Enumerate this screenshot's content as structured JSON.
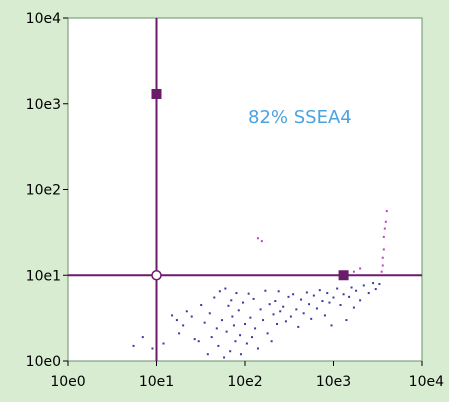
{
  "chart_data": {
    "type": "scatter",
    "x_scale": "log",
    "y_scale": "log",
    "xlim": [
      1,
      10000
    ],
    "ylim": [
      1,
      10000
    ],
    "x_ticks": [
      {
        "value": 1,
        "label": "10e0"
      },
      {
        "value": 10,
        "label": "10e1"
      },
      {
        "value": 100,
        "label": "10e2"
      },
      {
        "value": 1000,
        "label": "10e3"
      },
      {
        "value": 10000,
        "label": "10e4"
      }
    ],
    "y_ticks": [
      {
        "value": 1,
        "label": "10e0"
      },
      {
        "value": 10,
        "label": "10e1"
      },
      {
        "value": 100,
        "label": "10e2"
      },
      {
        "value": 1000,
        "label": "10e3"
      },
      {
        "value": 10000,
        "label": "10e4"
      }
    ],
    "annotation": {
      "text": "82% SSEA4",
      "color": "#4aa3e0"
    },
    "gate": {
      "x": 10,
      "y": 10,
      "color": "#6a1b6a",
      "handle_vertical": {
        "x": 10,
        "y": 1300
      },
      "handle_horizontal": {
        "x": 1300,
        "y": 10
      }
    },
    "colors": {
      "blue_events": "#3a3aa0",
      "magenta_events": "#c040c0",
      "frame": "#d8ecd2"
    },
    "grid": false,
    "legend": "none",
    "series": [
      {
        "color_key": "blue_events",
        "points": [
          [
            5.5,
            1.5
          ],
          [
            7,
            1.9
          ],
          [
            9,
            1.4
          ],
          [
            12,
            1.6
          ],
          [
            15,
            3.4
          ],
          [
            17,
            3.0
          ],
          [
            18,
            2.1
          ],
          [
            20,
            2.6
          ],
          [
            22,
            3.8
          ],
          [
            25,
            3.3
          ],
          [
            27,
            1.8
          ],
          [
            30,
            1.7
          ],
          [
            32,
            4.5
          ],
          [
            35,
            2.8
          ],
          [
            38,
            1.2
          ],
          [
            40,
            3.6
          ],
          [
            42,
            1.9
          ],
          [
            45,
            5.5
          ],
          [
            48,
            2.4
          ],
          [
            50,
            1.5
          ],
          [
            52,
            6.5
          ],
          [
            55,
            3.0
          ],
          [
            58,
            1.1
          ],
          [
            60,
            7.0
          ],
          [
            62,
            2.2
          ],
          [
            65,
            4.4
          ],
          [
            68,
            1.3
          ],
          [
            70,
            5.1
          ],
          [
            72,
            3.3
          ],
          [
            75,
            2.6
          ],
          [
            78,
            1.7
          ],
          [
            80,
            6.2
          ],
          [
            85,
            3.9
          ],
          [
            88,
            2.0
          ],
          [
            90,
            1.2
          ],
          [
            95,
            4.8
          ],
          [
            100,
            2.7
          ],
          [
            105,
            1.6
          ],
          [
            110,
            6.1
          ],
          [
            115,
            3.2
          ],
          [
            120,
            1.9
          ],
          [
            125,
            5.3
          ],
          [
            130,
            2.4
          ],
          [
            140,
            1.4
          ],
          [
            150,
            4.0
          ],
          [
            160,
            3.0
          ],
          [
            170,
            6.6
          ],
          [
            180,
            2.1
          ],
          [
            190,
            4.6
          ],
          [
            200,
            1.7
          ],
          [
            210,
            3.5
          ],
          [
            220,
            5.0
          ],
          [
            230,
            2.7
          ],
          [
            240,
            6.5
          ],
          [
            250,
            3.8
          ],
          [
            270,
            4.3
          ],
          [
            290,
            2.9
          ],
          [
            310,
            5.6
          ],
          [
            330,
            3.3
          ],
          [
            350,
            6.0
          ],
          [
            380,
            4.0
          ],
          [
            400,
            2.5
          ],
          [
            430,
            5.2
          ],
          [
            460,
            3.6
          ],
          [
            500,
            6.3
          ],
          [
            530,
            4.6
          ],
          [
            560,
            3.1
          ],
          [
            600,
            5.8
          ],
          [
            650,
            4.1
          ],
          [
            700,
            6.7
          ],
          [
            750,
            5.0
          ],
          [
            800,
            3.4
          ],
          [
            850,
            6.2
          ],
          [
            900,
            4.8
          ],
          [
            950,
            2.6
          ],
          [
            1000,
            5.5
          ],
          [
            1100,
            7.0
          ],
          [
            1200,
            4.5
          ],
          [
            1300,
            6.0
          ],
          [
            1400,
            3.0
          ],
          [
            1500,
            5.6
          ],
          [
            1600,
            7.2
          ],
          [
            1700,
            4.2
          ],
          [
            1800,
            6.6
          ],
          [
            2000,
            5.1
          ],
          [
            2200,
            7.6
          ],
          [
            2500,
            6.2
          ],
          [
            2800,
            8.1
          ],
          [
            3000,
            6.9
          ],
          [
            3300,
            7.9
          ]
        ]
      },
      {
        "color_key": "magenta_events",
        "points": [
          [
            140,
            27
          ],
          [
            155,
            25
          ],
          [
            1700,
            11
          ],
          [
            2000,
            12
          ],
          [
            3500,
            11
          ],
          [
            3600,
            13
          ],
          [
            3600,
            16
          ],
          [
            3700,
            20
          ],
          [
            3700,
            28
          ],
          [
            3800,
            35
          ],
          [
            3900,
            42
          ],
          [
            4000,
            56
          ]
        ]
      }
    ]
  }
}
